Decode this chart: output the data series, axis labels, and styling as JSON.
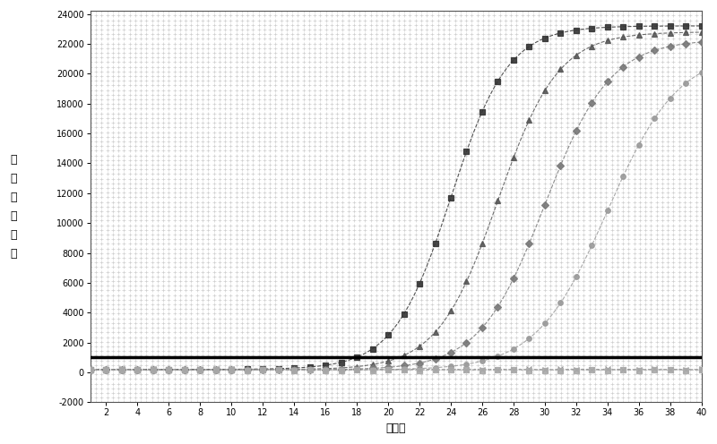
{
  "xlabel": "循环数",
  "ylabel": "相\n对\n荧\n光\n强\n度",
  "xlim": [
    1,
    40
  ],
  "ylim": [
    -2000,
    24200
  ],
  "yticks": [
    -2000,
    0,
    2000,
    4000,
    6000,
    8000,
    10000,
    12000,
    14000,
    16000,
    18000,
    20000,
    22000,
    24000
  ],
  "xticks": [
    2,
    4,
    6,
    8,
    10,
    12,
    14,
    16,
    18,
    20,
    22,
    24,
    26,
    28,
    30,
    32,
    34,
    36,
    38,
    40
  ],
  "threshold": 1000,
  "background_color": "#ffffff",
  "dot_color": "#aaaaaa",
  "threshold_color": "#000000",
  "curve_params": [
    {
      "color": "#333333",
      "marker": "s",
      "Ct": 24,
      "baseline": 200,
      "plateau": 23200,
      "slope": 0.55,
      "neg": false
    },
    {
      "color": "#555555",
      "marker": "^",
      "Ct": 27,
      "baseline": 180,
      "plateau": 22800,
      "slope": 0.52,
      "neg": false
    },
    {
      "color": "#777777",
      "marker": "D",
      "Ct": 30,
      "baseline": 160,
      "plateau": 22300,
      "slope": 0.48,
      "neg": false
    },
    {
      "color": "#999999",
      "marker": "o",
      "Ct": 34,
      "baseline": 150,
      "plateau": 21500,
      "slope": 0.44,
      "neg": false
    },
    {
      "color": "#888888",
      "marker": "x",
      "Ct": null,
      "baseline": 200,
      "plateau": 250,
      "slope": 0.05,
      "neg": true
    },
    {
      "color": "#aaaaaa",
      "marker": "s",
      "Ct": null,
      "baseline": 160,
      "plateau": 210,
      "slope": 0.05,
      "neg": true
    }
  ]
}
